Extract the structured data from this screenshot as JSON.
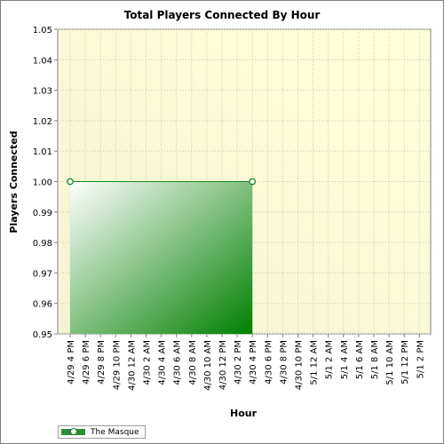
{
  "chart_data": {
    "type": "area",
    "title": "Total Players Connected By Hour",
    "xlabel": "Hour",
    "ylabel": "Players Connected",
    "ylim": [
      0.95,
      1.05
    ],
    "y_ticks": [
      "0.95",
      "0.96",
      "0.97",
      "0.98",
      "0.99",
      "1.00",
      "1.01",
      "1.02",
      "1.03",
      "1.04",
      "1.05"
    ],
    "x_ticks": [
      "4/29 4 PM",
      "4/29 6 PM",
      "4/29 8 PM",
      "4/29 10 PM",
      "4/30 12 AM",
      "4/30 2 AM",
      "4/30 4 AM",
      "4/30 6 AM",
      "4/30 8 AM",
      "4/30 10 AM",
      "4/30 12 PM",
      "4/30 2 PM",
      "4/30 4 PM",
      "4/30 6 PM",
      "4/30 8 PM",
      "4/30 10 PM",
      "5/1 12 AM",
      "5/1 2 AM",
      "5/1 4 AM",
      "5/1 6 AM",
      "5/1 8 AM",
      "5/1 10 AM",
      "5/1 12 PM",
      "5/1 2 PM"
    ],
    "grid": true,
    "legend_position": "bottom-left",
    "series": [
      {
        "name": "The Masque",
        "color": "#1c8a1c",
        "points": [
          {
            "x": "4/29 4 PM",
            "y": 1.0
          },
          {
            "x": "4/30 4 PM",
            "y": 1.0
          }
        ]
      }
    ]
  }
}
